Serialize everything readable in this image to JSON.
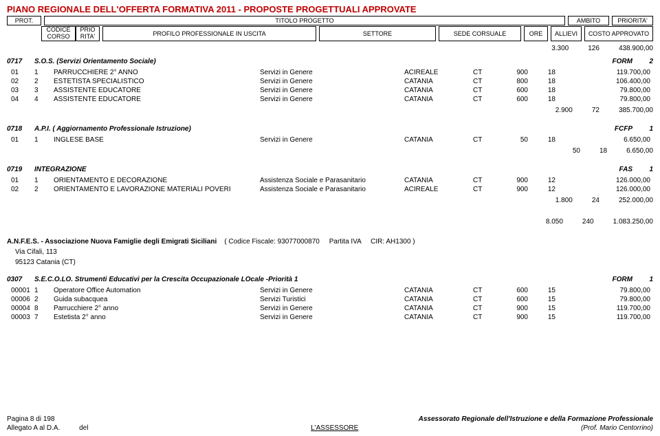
{
  "page_title": "PIANO REGIONALE DELL'OFFERTA FORMATIVA 2011 - PROPOSTE PROGETTUALI APPROVATE",
  "header": {
    "row1": {
      "prot": "PROT.",
      "titolo": "TITOLO PROGETTO",
      "ambito": "AMBITO",
      "priorita": "PRIORITA'"
    },
    "row2": {
      "codice": "CODICE CORSO",
      "prio": "PRIO RITA'",
      "profilo": "PROFILO PROFESSIONALE IN USCITA",
      "settore": "SETTORE",
      "sede": "SEDE CORSUALE",
      "ore": "ORE",
      "allievi": "ALLIEVI",
      "costo": "COSTO APPROVATO"
    }
  },
  "top_totals": {
    "a": "3.300",
    "b": "126",
    "c": "438.900,00"
  },
  "sections": [
    {
      "id": "0717",
      "name": "S.O.S. (Servizi Orientamento Sociale)",
      "r1": "FORM",
      "r2": "2",
      "rows": [
        {
          "c1": "01",
          "c2": "1",
          "c3": "PARRUCCHIERE 2° ANNO",
          "c4": "Servizi in Genere",
          "c5": "ACIREALE",
          "c6": "CT",
          "c7": "900",
          "c8": "18",
          "c9": "119.700,00"
        },
        {
          "c1": "02",
          "c2": "2",
          "c3": "ESTETISTA SPECIALISTICO",
          "c4": "Servizi in Genere",
          "c5": "CATANIA",
          "c6": "CT",
          "c7": "800",
          "c8": "18",
          "c9": "106.400,00"
        },
        {
          "c1": "03",
          "c2": "3",
          "c3": "ASSISTENTE EDUCATORE",
          "c4": "Servizi in Genere",
          "c5": "CATANIA",
          "c6": "CT",
          "c7": "600",
          "c8": "18",
          "c9": "79.800,00"
        },
        {
          "c1": "04",
          "c2": "4",
          "c3": "ASSISTENTE EDUCATORE",
          "c4": "Servizi in Genere",
          "c5": "CATANIA",
          "c6": "CT",
          "c7": "600",
          "c8": "18",
          "c9": "79.800,00"
        }
      ],
      "subtotal": {
        "a": "2.900",
        "b": "72",
        "c": "385.700,00"
      }
    },
    {
      "id": "0718",
      "name": "A.P.I. ( Aggiornamento Professionale Istruzione)",
      "r1": "FCFP",
      "r2": "1",
      "rows": [
        {
          "c1": "01",
          "c2": "1",
          "c3": "INGLESE BASE",
          "c4": "Servizi in Genere",
          "c5": "CATANIA",
          "c6": "CT",
          "c7": "50",
          "c8": "18",
          "c9": "6.650,00"
        }
      ],
      "subtotal": {
        "a": "50",
        "b": "18",
        "c": "6.650,00"
      }
    },
    {
      "id": "0719",
      "name": "INTEGRAZIONE",
      "r1": "FAS",
      "r2": "1",
      "rows": [
        {
          "c1": "01",
          "c2": "1",
          "c3": "ORIENTAMENTO E DECORAZIONE",
          "c4": "Assistenza Sociale e Parasanitario",
          "c5": "CATANIA",
          "c6": "CT",
          "c7": "900",
          "c8": "12",
          "c9": "126.000,00"
        },
        {
          "c1": "02",
          "c2": "2",
          "c3": "ORIENTAMENTO E LAVORAZIONE MATERIALI POVERI",
          "c4": "Assistenza Sociale e Parasanitario",
          "c5": "ACIREALE",
          "c6": "CT",
          "c7": "900",
          "c8": "12",
          "c9": "126.000,00"
        }
      ],
      "subtotal": {
        "a": "1.800",
        "b": "24",
        "c": "252.000,00"
      }
    }
  ],
  "grand_total": {
    "a": "8.050",
    "b": "240",
    "c": "1.083.250,00"
  },
  "assoc": {
    "name": "A.N.F.E.S. - Associazione Nuova Famiglie degli Emigrati Siciliani",
    "codice": "( Codice Fiscale: 93077000870",
    "piva_label": "Partita IVA",
    "cir": "CIR: AH1300 )",
    "addr1": "Via Cifali, 113",
    "addr2": "95123 Catania (CT)"
  },
  "section2": {
    "id": "0307",
    "name": "S.E.C.O.LO. Strumenti Educativi per la Crescita Occupazionale LOcale -Priorità 1",
    "r1": "FORM",
    "r2": "1",
    "rows": [
      {
        "c1": "00001",
        "c2": "1",
        "c3": "Operatore Office Automation",
        "c4": "Servizi in Genere",
        "c5": "CATANIA",
        "c6": "CT",
        "c7": "600",
        "c8": "15",
        "c9": "79.800,00"
      },
      {
        "c1": "00006",
        "c2": "2",
        "c3": "Guida subacquea",
        "c4": "Servizi Turistici",
        "c5": "CATANIA",
        "c6": "CT",
        "c7": "600",
        "c8": "15",
        "c9": "79.800,00"
      },
      {
        "c1": "00004",
        "c2": "8",
        "c3": "Parrucchiere 2° anno",
        "c4": "Servizi in Genere",
        "c5": "CATANIA",
        "c6": "CT",
        "c7": "900",
        "c8": "15",
        "c9": "119.700,00"
      },
      {
        "c1": "00003",
        "c2": "7",
        "c3": "Estetista 2° anno",
        "c4": "Servizi in Genere",
        "c5": "CATANIA",
        "c6": "CT",
        "c7": "900",
        "c8": "15",
        "c9": "119.700,00"
      }
    ]
  },
  "footer": {
    "page": "Pagina 8 di 198",
    "right": "Assessorato Regionale dell'Istruzione e della Formazione Professionale",
    "left2": "Allegato A al D.A.",
    "left2b": "del",
    "center": "L'ASSESSORE",
    "sig": "(Prof. Mario Centorrino)"
  }
}
